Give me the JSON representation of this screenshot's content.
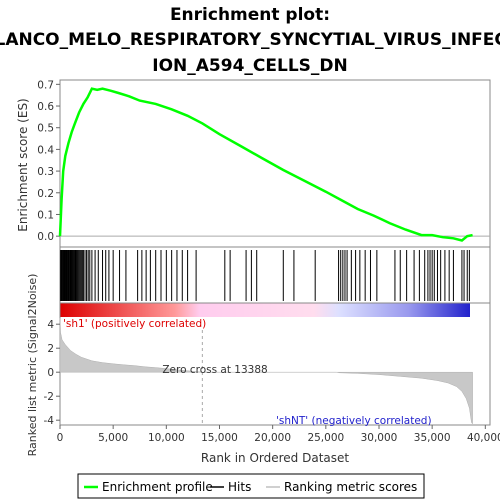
{
  "chart_data": {
    "type": "line",
    "title_lines": [
      "Enrichment plot:",
      "BLANCO_MELO_RESPIRATORY_SYNCYTIAL_VIRUS_INFECT",
      "ION_A594_CELLS_DN"
    ],
    "es_panel": {
      "ylabel": "Enrichment score (ES)",
      "ylim": [
        -0.05,
        0.72
      ],
      "yticks": [
        "0.0",
        "0.1",
        "0.2",
        "0.3",
        "0.4",
        "0.5",
        "0.6",
        "0.7"
      ],
      "ytick_values": [
        0.0,
        0.1,
        0.2,
        0.3,
        0.4,
        0.5,
        0.6,
        0.7
      ],
      "series_name": "Enrichment profile",
      "color": "#00ff00",
      "points": [
        [
          0,
          0.0
        ],
        [
          150,
          0.17
        ],
        [
          300,
          0.3
        ],
        [
          500,
          0.37
        ],
        [
          800,
          0.43
        ],
        [
          1100,
          0.48
        ],
        [
          1400,
          0.52
        ],
        [
          1800,
          0.57
        ],
        [
          2200,
          0.61
        ],
        [
          2600,
          0.64
        ],
        [
          3000,
          0.68
        ],
        [
          3500,
          0.675
        ],
        [
          4000,
          0.68
        ],
        [
          4800,
          0.67
        ],
        [
          5500,
          0.66
        ],
        [
          6500,
          0.645
        ],
        [
          7500,
          0.625
        ],
        [
          9000,
          0.61
        ],
        [
          10500,
          0.585
        ],
        [
          12000,
          0.555
        ],
        [
          13388,
          0.52
        ],
        [
          15000,
          0.47
        ],
        [
          17000,
          0.415
        ],
        [
          19000,
          0.36
        ],
        [
          21000,
          0.305
        ],
        [
          23000,
          0.255
        ],
        [
          25000,
          0.205
        ],
        [
          26500,
          0.165
        ],
        [
          28000,
          0.125
        ],
        [
          29500,
          0.095
        ],
        [
          31000,
          0.06
        ],
        [
          32500,
          0.03
        ],
        [
          34000,
          0.005
        ],
        [
          35000,
          0.005
        ],
        [
          36000,
          -0.005
        ],
        [
          37000,
          -0.01
        ],
        [
          37800,
          -0.02
        ],
        [
          38300,
          0.0
        ],
        [
          38800,
          0.005
        ]
      ]
    },
    "hits": {
      "series_name": "Hits",
      "color": "#000000",
      "positions": [
        60,
        120,
        180,
        250,
        320,
        380,
        450,
        520,
        590,
        650,
        720,
        800,
        870,
        950,
        1030,
        1100,
        1180,
        1260,
        1340,
        1420,
        1500,
        1600,
        1700,
        1800,
        1900,
        2000,
        2100,
        2200,
        2350,
        2500,
        2650,
        2800,
        3000,
        3300,
        3600,
        4000,
        4300,
        4600,
        5000,
        5600,
        6200,
        7300,
        7700,
        8100,
        8500,
        9000,
        9500,
        10000,
        10500,
        11000,
        11500,
        12000,
        12800,
        15500,
        16000,
        17500,
        18000,
        18500,
        21000,
        22000,
        24000,
        26200,
        26400,
        26600,
        26800,
        27000,
        27400,
        27800,
        28200,
        28700,
        29200,
        29800,
        31500,
        32000,
        32600,
        33300,
        33800,
        34300,
        34600,
        34800,
        35000,
        35200,
        35500,
        35800,
        36200,
        36600,
        37000,
        37800,
        38000,
        38300,
        38500
      ]
    },
    "colorbar": {
      "pos_label": "'sh1' (positively correlated)",
      "neg_label": "'shNT' (negatively correlated)",
      "pos_color": "#dd0000",
      "neg_color": "#2222cc"
    },
    "metric_panel": {
      "ylabel": "Ranked list metric (Signal2Noise)",
      "ylim": [
        -4.4,
        4.6
      ],
      "yticks": [
        "4",
        "2",
        "0",
        "-2",
        "-4"
      ],
      "ytick_values": [
        4,
        2,
        0,
        -2,
        -4
      ],
      "series_name": "Ranking metric scores",
      "zero_cross_label": "Zero cross at 13388",
      "zero_cross": 13388,
      "points": [
        [
          0,
          4.5
        ],
        [
          60,
          3.3
        ],
        [
          200,
          2.7
        ],
        [
          500,
          2.3
        ],
        [
          1000,
          1.8
        ],
        [
          1500,
          1.5
        ],
        [
          2000,
          1.25
        ],
        [
          3000,
          0.95
        ],
        [
          4000,
          0.8
        ],
        [
          5000,
          0.7
        ],
        [
          6000,
          0.62
        ],
        [
          7000,
          0.55
        ],
        [
          8000,
          0.45
        ],
        [
          9000,
          0.38
        ],
        [
          10000,
          0.3
        ],
        [
          11000,
          0.2
        ],
        [
          12000,
          0.12
        ],
        [
          13388,
          0.0
        ],
        [
          26000,
          0.0
        ],
        [
          26300,
          -0.05
        ],
        [
          28000,
          -0.1
        ],
        [
          30000,
          -0.2
        ],
        [
          32000,
          -0.35
        ],
        [
          34000,
          -0.5
        ],
        [
          35500,
          -0.7
        ],
        [
          36500,
          -0.9
        ],
        [
          37300,
          -1.2
        ],
        [
          37800,
          -1.6
        ],
        [
          38200,
          -2.2
        ],
        [
          38500,
          -3.0
        ],
        [
          38700,
          -4.2
        ],
        [
          38800,
          -4.3
        ]
      ]
    },
    "xaxis": {
      "label": "Rank in Ordered Dataset",
      "xlim": [
        0,
        40000
      ],
      "ticks": [
        "0",
        "5,000",
        "10,000",
        "15,000",
        "20,000",
        "25,000",
        "30,000",
        "35,000",
        "40,000"
      ],
      "tick_values": [
        0,
        5000,
        10000,
        15000,
        20000,
        25000,
        30000,
        35000,
        40000
      ]
    },
    "legend": {
      "placement": "bottom",
      "entries": [
        "Enrichment profile",
        "Hits",
        "Ranking metric scores"
      ]
    }
  }
}
